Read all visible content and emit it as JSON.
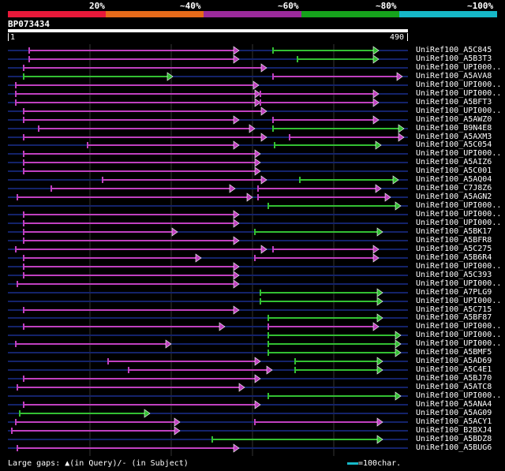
{
  "legend": {
    "segments": [
      {
        "label": "20%",
        "color": "#e8193a"
      },
      {
        "label": "~40%",
        "color": "#e66a1a"
      },
      {
        "label": "~60%",
        "color": "#9b2a9b"
      },
      {
        "label": "~80%",
        "color": "#16a31c"
      },
      {
        "label": "~100%",
        "color": "#16b8c8"
      }
    ]
  },
  "query": {
    "name": "BP073434",
    "start": "1",
    "end": "490"
  },
  "colors": {
    "purple": "#c040c0",
    "green": "#33c033",
    "dark_line": "#14236a",
    "grid": "#333333"
  },
  "hits": [
    {
      "label": "UniRef100_A5C845",
      "segs": [
        [
          37,
          303,
          "p"
        ],
        [
          346,
          480,
          "g"
        ]
      ]
    },
    {
      "label": "UniRef100_A5B3T3",
      "segs": [
        [
          37,
          303,
          "p"
        ],
        [
          377,
          480,
          "g"
        ]
      ]
    },
    {
      "label": "UniRef100_UPI000..",
      "segs": [
        [
          30,
          338,
          "p"
        ]
      ]
    },
    {
      "label": "UniRef100_A5AVA8",
      "segs": [
        [
          30,
          219,
          "g"
        ],
        [
          346,
          510,
          "p"
        ]
      ]
    },
    {
      "label": "UniRef100_UPI000..",
      "segs": [
        [
          20,
          328,
          "p"
        ]
      ]
    },
    {
      "label": "UniRef100_UPI000..",
      "segs": [
        [
          20,
          330,
          "p"
        ],
        [
          330,
          480,
          "p"
        ]
      ]
    },
    {
      "label": "UniRef100_A5BFT3",
      "segs": [
        [
          20,
          330,
          "p"
        ],
        [
          330,
          480,
          "p"
        ]
      ]
    },
    {
      "label": "UniRef100_UPI000..",
      "segs": [
        [
          30,
          338,
          "p"
        ]
      ]
    },
    {
      "label": "UniRef100_A5AWZ0",
      "segs": [
        [
          30,
          303,
          "p"
        ],
        [
          346,
          480,
          "p"
        ]
      ]
    },
    {
      "label": "UniRef100_B9N4E8",
      "segs": [
        [
          49,
          323,
          "p"
        ],
        [
          346,
          512,
          "g"
        ]
      ]
    },
    {
      "label": "UniRef100_A5AXM3",
      "segs": [
        [
          30,
          338,
          "p"
        ],
        [
          367,
          512,
          "p"
        ]
      ]
    },
    {
      "label": "UniRef100_A5C054",
      "segs": [
        [
          111,
          303,
          "p"
        ],
        [
          348,
          483,
          "g"
        ]
      ]
    },
    {
      "label": "UniRef100_UPI000..",
      "segs": [
        [
          30,
          330,
          "p"
        ]
      ]
    },
    {
      "label": "UniRef100_A5AIZ6",
      "segs": [
        [
          30,
          330,
          "p"
        ]
      ]
    },
    {
      "label": "UniRef100_A5C001",
      "segs": [
        [
          30,
          330,
          "p"
        ]
      ]
    },
    {
      "label": "UniRef100_A5AQ04",
      "segs": [
        [
          130,
          338,
          "p"
        ],
        [
          380,
          505,
          "g"
        ]
      ]
    },
    {
      "label": "UniRef100_C7J8Z6",
      "segs": [
        [
          65,
          298,
          "p"
        ],
        [
          327,
          483,
          "p"
        ]
      ]
    },
    {
      "label": "UniRef100_A5AGN2",
      "segs": [
        [
          22,
          320,
          "p"
        ],
        [
          327,
          495,
          "p"
        ]
      ]
    },
    {
      "label": "UniRef100_UPI000..",
      "segs": [
        [
          340,
          508,
          "g"
        ]
      ]
    },
    {
      "label": "UniRef100_UPI000..",
      "segs": [
        [
          30,
          303,
          "p"
        ]
      ]
    },
    {
      "label": "UniRef100_UPI000..",
      "segs": [
        [
          30,
          303,
          "p"
        ]
      ]
    },
    {
      "label": "UniRef100_A5BK17",
      "segs": [
        [
          30,
          225,
          "p"
        ],
        [
          323,
          485,
          "g"
        ]
      ]
    },
    {
      "label": "UniRef100_A5BFR8",
      "segs": [
        [
          30,
          303,
          "p"
        ]
      ]
    },
    {
      "label": "UniRef100_A5C275",
      "segs": [
        [
          20,
          338,
          "p"
        ],
        [
          346,
          480,
          "p"
        ]
      ]
    },
    {
      "label": "UniRef100_A5B6R4",
      "segs": [
        [
          30,
          255,
          "p"
        ],
        [
          323,
          480,
          "p"
        ]
      ]
    },
    {
      "label": "UniRef100_UPI000..",
      "segs": [
        [
          30,
          303,
          "p"
        ]
      ]
    },
    {
      "label": "UniRef100_A5C393",
      "segs": [
        [
          30,
          303,
          "p"
        ]
      ]
    },
    {
      "label": "UniRef100_UPI000..",
      "segs": [
        [
          22,
          303,
          "p"
        ]
      ]
    },
    {
      "label": "UniRef100_A7PLG9",
      "segs": [
        [
          330,
          485,
          "g"
        ]
      ]
    },
    {
      "label": "UniRef100_UPI000..",
      "segs": [
        [
          330,
          485,
          "g"
        ]
      ]
    },
    {
      "label": "UniRef100_A5C715",
      "segs": [
        [
          30,
          303,
          "p"
        ]
      ]
    },
    {
      "label": "UniRef100_A5BF87",
      "segs": [
        [
          340,
          485,
          "g"
        ]
      ]
    },
    {
      "label": "UniRef100_UPI000..",
      "segs": [
        [
          30,
          285,
          "p"
        ],
        [
          340,
          480,
          "p"
        ]
      ]
    },
    {
      "label": "UniRef100_UPI000..",
      "segs": [
        [
          340,
          508,
          "g"
        ]
      ]
    },
    {
      "label": "UniRef100_UPI000..",
      "segs": [
        [
          20,
          217,
          "p"
        ],
        [
          340,
          508,
          "g"
        ]
      ]
    },
    {
      "label": "UniRef100_A5BMF5",
      "segs": [
        [
          340,
          508,
          "g"
        ]
      ]
    },
    {
      "label": "UniRef100_A5AD69",
      "segs": [
        [
          137,
          330,
          "p"
        ],
        [
          374,
          485,
          "g"
        ]
      ]
    },
    {
      "label": "UniRef100_A5C4E1",
      "segs": [
        [
          163,
          345,
          "p"
        ],
        [
          374,
          485,
          "g"
        ]
      ]
    },
    {
      "label": "UniRef100_A5BJ70",
      "segs": [
        [
          30,
          330,
          "p"
        ]
      ]
    },
    {
      "label": "UniRef100_A5ATC8",
      "segs": [
        [
          22,
          310,
          "p"
        ]
      ]
    },
    {
      "label": "UniRef100_UPI000..",
      "segs": [
        [
          340,
          508,
          "g"
        ]
      ]
    },
    {
      "label": "UniRef100_A5ANA4",
      "segs": [
        [
          30,
          330,
          "p"
        ]
      ]
    },
    {
      "label": "UniRef100_A5AG09",
      "segs": [
        [
          25,
          190,
          "g"
        ]
      ]
    },
    {
      "label": "UniRef100_A5ACY1",
      "segs": [
        [
          20,
          228,
          "p"
        ],
        [
          323,
          485,
          "p"
        ]
      ]
    },
    {
      "label": "UniRef100_B2BXJ4",
      "segs": [
        [
          15,
          228,
          "p"
        ]
      ]
    },
    {
      "label": "UniRef100_A5BDZ8",
      "segs": [
        [
          269,
          485,
          "g"
        ]
      ]
    },
    {
      "label": "UniRef100_A5BUG6",
      "segs": [
        [
          22,
          303,
          "p"
        ]
      ]
    }
  ],
  "footer": {
    "gap_text": "Large gaps: ▲(in Query)/- (in Subject)",
    "scale_text": "=100char."
  }
}
